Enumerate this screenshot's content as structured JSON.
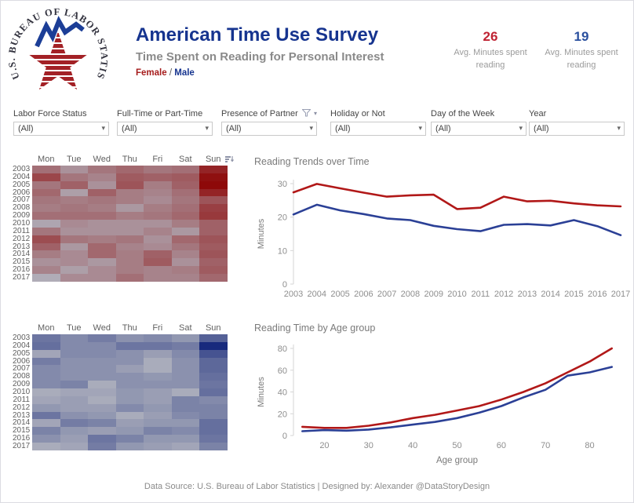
{
  "header": {
    "logo_text": "U.S. BUREAU OF LABOR STATISTICS",
    "title": "American Time Use Survey",
    "subtitle": "Time Spent on Reading for Personal Interest",
    "legend": {
      "female": "Female",
      "separator": " / ",
      "male": "Male"
    },
    "kpis": [
      {
        "value": "26",
        "label": "Avg. Minutes spent reading",
        "color": "#bf2333"
      },
      {
        "value": "19",
        "label": "Avg. Minutes spent reading",
        "color": "#2a4f9e"
      }
    ]
  },
  "filters": [
    {
      "label": "Labor Force Status",
      "value": "(All)",
      "has_funnel": false
    },
    {
      "label": "Full-Time or Part-Time",
      "value": "(All)",
      "has_funnel": false
    },
    {
      "label": "Presence of Partner",
      "value": "(All)",
      "has_funnel": true
    },
    {
      "label": "Holiday or Not",
      "value": "(All)",
      "has_funnel": false
    },
    {
      "label": "Day of the Week",
      "value": "(All)",
      "has_funnel": false
    },
    {
      "label": "Year",
      "value": "(All)",
      "has_funnel": false
    }
  ],
  "colors": {
    "title_blue": "#16348f",
    "female_red": "#b11818",
    "male_blue": "#2b4096",
    "kpi_red": "#bf2333",
    "kpi_blue": "#2a4f9e",
    "heat_low_gray": "#b1b3be",
    "heat_red_high": "#8e0909",
    "heat_blue_high": "#182a7d",
    "axis_text": "#8e8e8e"
  },
  "footer": {
    "text": "Data Source: U.S. Bureau of Labor Statistics | Designed by: Alexander @DataStoryDesign"
  },
  "chart_data": [
    {
      "type": "heatmap",
      "name": "female-reading-minutes-by-day-and-year",
      "legend_entry": "Female",
      "columns": [
        "Mon",
        "Tue",
        "Wed",
        "Thu",
        "Fri",
        "Sat",
        "Sun"
      ],
      "rows": [
        "2003",
        "2004",
        "2005",
        "2006",
        "2007",
        "2008",
        "2009",
        "2010",
        "2011",
        "2012",
        "2013",
        "2014",
        "2015",
        "2016",
        "2017"
      ],
      "values": [
        [
          27,
          22,
          26,
          28,
          26,
          27,
          38
        ],
        [
          33,
          26,
          24,
          30,
          29,
          30,
          41
        ],
        [
          26,
          29,
          22,
          31,
          25,
          29,
          42
        ],
        [
          28,
          20,
          29,
          25,
          24,
          27,
          38
        ],
        [
          26,
          25,
          26,
          25,
          23,
          26,
          31
        ],
        [
          25,
          26,
          25,
          21,
          25,
          27,
          34
        ],
        [
          27,
          27,
          27,
          25,
          26,
          28,
          35
        ],
        [
          19,
          23,
          22,
          22,
          22,
          25,
          29
        ],
        [
          26,
          22,
          22,
          22,
          24,
          21,
          29
        ],
        [
          32,
          26,
          25,
          26,
          22,
          28,
          31
        ],
        [
          29,
          21,
          28,
          24,
          23,
          26,
          30
        ],
        [
          25,
          23,
          28,
          25,
          29,
          24,
          31
        ],
        [
          22,
          23,
          21,
          25,
          30,
          22,
          29
        ],
        [
          24,
          20,
          23,
          25,
          24,
          25,
          30
        ],
        [
          18,
          23,
          23,
          27,
          24,
          24,
          28
        ]
      ],
      "value_unit": "avg minutes reading (estimated from shade)",
      "color_scale": {
        "min": 17,
        "max": 42,
        "low": "#b1b3be",
        "high": "#8e0909"
      },
      "sort_icon_on_last_column": true
    },
    {
      "type": "line",
      "title": "Reading Trends over Time",
      "xlabel": "",
      "ylabel": "Minutes",
      "ylim": [
        0,
        30
      ],
      "yticks": [
        0,
        10,
        20,
        30
      ],
      "x": [
        2003,
        2004,
        2005,
        2006,
        2007,
        2008,
        2009,
        2010,
        2011,
        2012,
        2013,
        2014,
        2015,
        2016,
        2017
      ],
      "xdomain": [
        2003,
        2017
      ],
      "grid": false,
      "legend_position": "none",
      "series": [
        {
          "name": "Female",
          "color": "#b11818",
          "values": [
            27.4,
            29.9,
            28.6,
            27.3,
            26.1,
            26.5,
            26.7,
            22.4,
            22.8,
            26.1,
            24.7,
            24.9,
            24.1,
            23.5,
            23.2
          ]
        },
        {
          "name": "Male",
          "color": "#2b4096",
          "values": [
            20.8,
            23.7,
            22.0,
            20.9,
            19.6,
            19.1,
            17.4,
            16.4,
            15.8,
            17.7,
            17.9,
            17.5,
            19.1,
            17.3,
            14.6
          ]
        }
      ]
    },
    {
      "type": "heatmap",
      "name": "male-reading-minutes-by-day-and-year",
      "legend_entry": "Male",
      "columns": [
        "Mon",
        "Tue",
        "Wed",
        "Thu",
        "Fri",
        "Sat",
        "Sun"
      ],
      "rows": [
        "2003",
        "2004",
        "2005",
        "2006",
        "2007",
        "2008",
        "2009",
        "2010",
        "2011",
        "2012",
        "2013",
        "2014",
        "2015",
        "2016",
        "2017"
      ],
      "values": [
        [
          24,
          21,
          23,
          20,
          21,
          19,
          27
        ],
        [
          25,
          21,
          21,
          24,
          24,
          23,
          35
        ],
        [
          17,
          21,
          21,
          20,
          18,
          21,
          29
        ],
        [
          23,
          20,
          20,
          20,
          16,
          20,
          26
        ],
        [
          21,
          20,
          20,
          18,
          16,
          20,
          26
        ],
        [
          21,
          20,
          20,
          20,
          19,
          20,
          25
        ],
        [
          21,
          22,
          16,
          20,
          20,
          20,
          24
        ],
        [
          16,
          17,
          17,
          19,
          18,
          16,
          25
        ],
        [
          17,
          18,
          16,
          19,
          18,
          22,
          21
        ],
        [
          19,
          18,
          18,
          21,
          19,
          22,
          22
        ],
        [
          24,
          20,
          19,
          16,
          18,
          21,
          22
        ],
        [
          17,
          23,
          22,
          18,
          19,
          19,
          25
        ],
        [
          22,
          19,
          18,
          19,
          22,
          21,
          25
        ],
        [
          20,
          18,
          24,
          22,
          19,
          19,
          24
        ],
        [
          16,
          17,
          23,
          19,
          18,
          17,
          22
        ]
      ],
      "value_unit": "avg minutes reading (estimated from shade)",
      "color_scale": {
        "min": 15,
        "max": 35,
        "low": "#b1b3be",
        "high": "#182a7d"
      },
      "sort_icon_on_last_column": false
    },
    {
      "type": "line",
      "title": "Reading Time by Age group",
      "xlabel": "Age group",
      "ylabel": "Minutes",
      "ylim": [
        0,
        80
      ],
      "yticks": [
        0,
        20,
        40,
        60,
        80
      ],
      "x": [
        15,
        20,
        25,
        30,
        35,
        40,
        45,
        50,
        55,
        60,
        65,
        70,
        75,
        80,
        85
      ],
      "xticks": [
        20,
        30,
        40,
        50,
        60,
        70,
        80
      ],
      "xdomain": [
        13,
        87
      ],
      "grid": false,
      "legend_position": "none",
      "series": [
        {
          "name": "Female",
          "color": "#b11818",
          "values": [
            8,
            7,
            7,
            9,
            12,
            16,
            19,
            23,
            27,
            33,
            40,
            48,
            58,
            68,
            80
          ]
        },
        {
          "name": "Male",
          "color": "#2b4096",
          "values": [
            4,
            5,
            4.5,
            5.5,
            7.5,
            10,
            12.5,
            16,
            21,
            27,
            35,
            42,
            55,
            58,
            63
          ]
        }
      ]
    }
  ]
}
